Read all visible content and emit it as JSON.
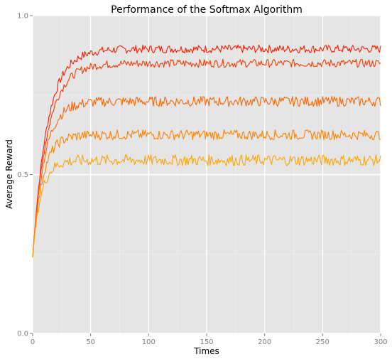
{
  "chart_data": {
    "type": "line",
    "title": "Performance of the Softmax Algorithm",
    "xlabel": "Times",
    "ylabel": "Average Reward",
    "xlim": [
      0,
      300
    ],
    "ylim": [
      0,
      1
    ],
    "x_ticks": [
      0,
      50,
      100,
      150,
      200,
      250,
      300
    ],
    "y_ticks": [
      0,
      0.5,
      1
    ],
    "y_tick_labels": [
      "0.0",
      "0.5",
      "1.0"
    ],
    "grid": true,
    "legend": "none",
    "background": "#e5e5e5",
    "series": [
      {
        "plateau": 0.895,
        "start": 0.24,
        "rate": 0.08,
        "noise": 0.008,
        "color": "#ff1a00"
      },
      {
        "plateau": 0.85,
        "start": 0.24,
        "rate": 0.08,
        "noise": 0.008,
        "color": "#ff3a00"
      },
      {
        "plateau": 0.73,
        "start": 0.24,
        "rate": 0.1,
        "noise": 0.01,
        "color": "#ff6600"
      },
      {
        "plateau": 0.625,
        "start": 0.24,
        "rate": 0.12,
        "noise": 0.01,
        "color": "#ff8200"
      },
      {
        "plateau": 0.545,
        "start": 0.24,
        "rate": 0.14,
        "noise": 0.011,
        "color": "#ffa500"
      }
    ]
  }
}
